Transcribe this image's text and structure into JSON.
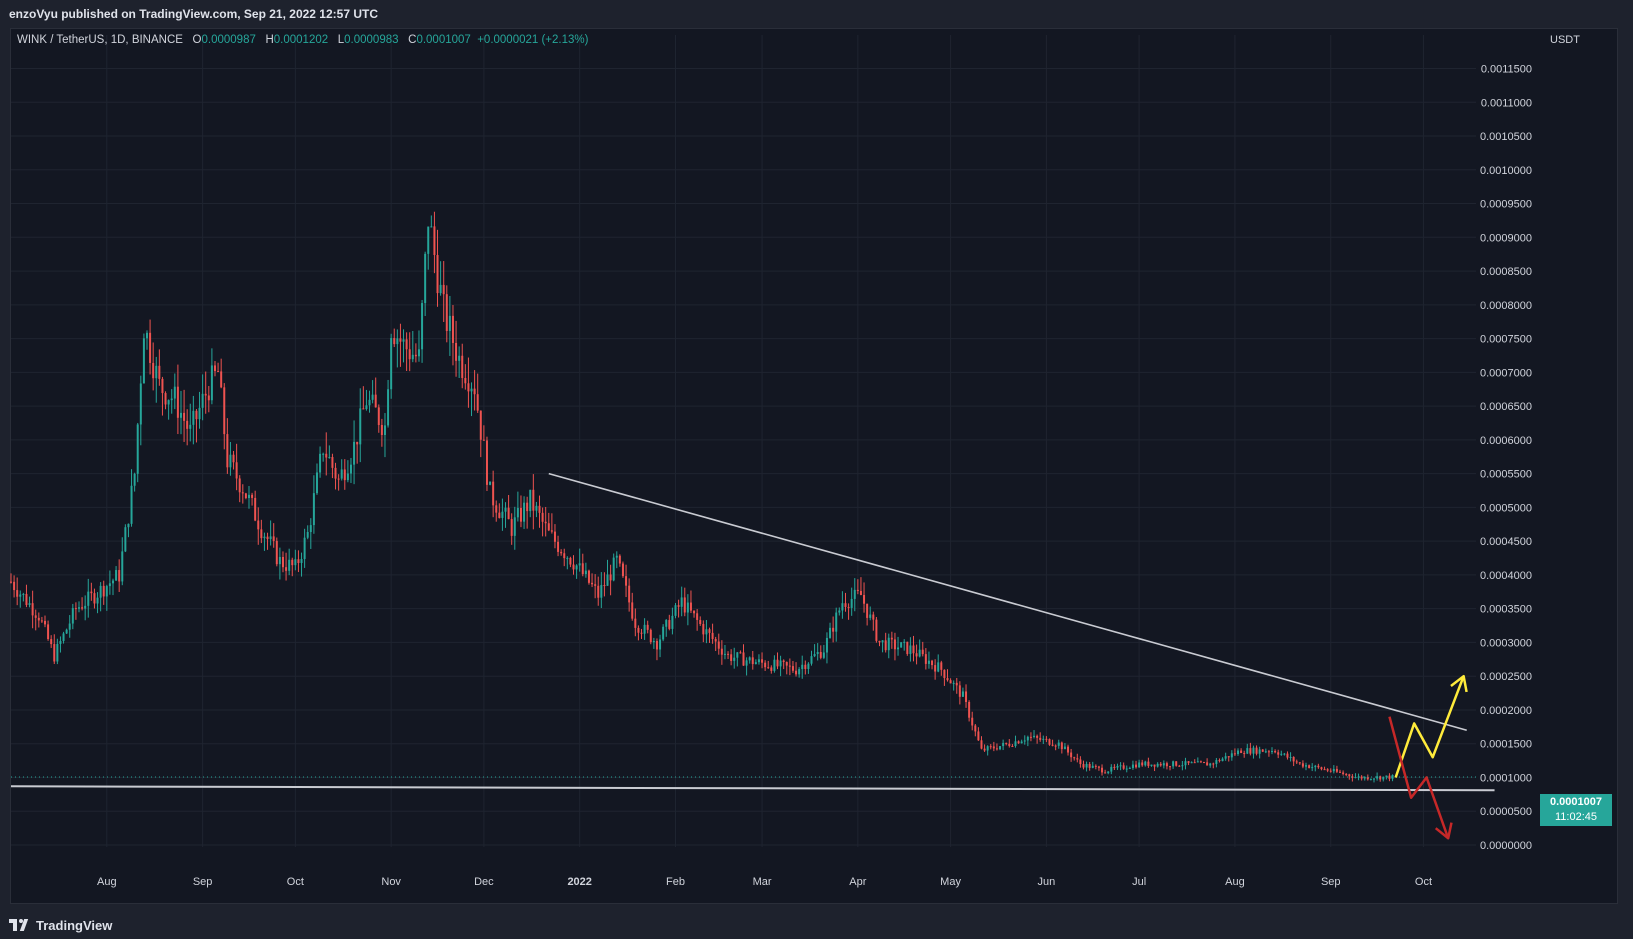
{
  "header": {
    "published": "enzoVyu published on TradingView.com, Sep 21, 2022 12:57 UTC"
  },
  "legend": {
    "symbol": "WINK / TetherUS, 1D, BINANCE",
    "o_label": "O",
    "o_value": "0.0000987",
    "h_label": "H",
    "h_value": "0.0001202",
    "l_label": "L",
    "l_value": "0.0000983",
    "c_label": "C",
    "c_value": "0.0001007",
    "change": "+0.0000021 (+2.13%)"
  },
  "price_axis": {
    "unit": "USDT"
  },
  "last_price": {
    "price": "0.0001007",
    "countdown": "11:02:45"
  },
  "footer": {
    "brand": "TradingView"
  },
  "colors": {
    "up": "#26a69a",
    "down": "#ef5350",
    "background": "#131722",
    "grid": "#1f2430",
    "axis_text": "#d1d4dc",
    "trendline": "#c9cbd2",
    "bull_arrow": "#ffeb3b",
    "bear_arrow": "#c62828"
  },
  "chart_data": {
    "type": "candlestick",
    "title": "WINK / TetherUS, 1D, BINANCE",
    "ylabel": "USDT",
    "ylim": [
      0,
      0.00117
    ],
    "y_ticks": [
      "0.0011500",
      "0.0011000",
      "0.0010500",
      "0.0010000",
      "0.0009500",
      "0.0009000",
      "0.0008500",
      "0.0008000",
      "0.0007500",
      "0.0007000",
      "0.0006500",
      "0.0006000",
      "0.0005500",
      "0.0005000",
      "0.0004500",
      "0.0004000",
      "0.0003500",
      "0.0003000",
      "0.0002500",
      "0.0002000",
      "0.0001500",
      "0.0001000",
      "0.0000500",
      "0.0000000"
    ],
    "x_ticks": [
      {
        "date": "2021-08-01",
        "label": "Aug"
      },
      {
        "date": "2021-09-01",
        "label": "Sep"
      },
      {
        "date": "2021-10-01",
        "label": "Oct"
      },
      {
        "date": "2021-11-01",
        "label": "Nov"
      },
      {
        "date": "2021-12-01",
        "label": "Dec"
      },
      {
        "date": "2022-01-01",
        "label": "2022"
      },
      {
        "date": "2022-02-01",
        "label": "Feb"
      },
      {
        "date": "2022-03-01",
        "label": "Mar"
      },
      {
        "date": "2022-04-01",
        "label": "Apr"
      },
      {
        "date": "2022-05-01",
        "label": "May"
      },
      {
        "date": "2022-06-01",
        "label": "Jun"
      },
      {
        "date": "2022-07-01",
        "label": "Jul"
      },
      {
        "date": "2022-08-01",
        "label": "Aug"
      },
      {
        "date": "2022-09-01",
        "label": "Sep"
      },
      {
        "date": "2022-10-01",
        "label": "Oct"
      }
    ],
    "x_range": [
      "2021-07-01",
      "2022-10-18"
    ],
    "price_path": [
      [
        "2021-07-01",
        0.00039
      ],
      [
        "2021-07-10",
        0.00034
      ],
      [
        "2021-07-15",
        0.00028
      ],
      [
        "2021-07-22",
        0.00035
      ],
      [
        "2021-07-28",
        0.00037
      ],
      [
        "2021-08-05",
        0.0004
      ],
      [
        "2021-08-10",
        0.00055
      ],
      [
        "2021-08-13",
        0.00077
      ],
      [
        "2021-08-18",
        0.00068
      ],
      [
        "2021-08-23",
        0.00066
      ],
      [
        "2021-08-28",
        0.00061
      ],
      [
        "2021-09-03",
        0.00068
      ],
      [
        "2021-09-06",
        0.0007
      ],
      [
        "2021-09-09",
        0.00057
      ],
      [
        "2021-09-14",
        0.00053
      ],
      [
        "2021-09-20",
        0.00047
      ],
      [
        "2021-09-26",
        0.00042
      ],
      [
        "2021-10-01",
        0.00041
      ],
      [
        "2021-10-05",
        0.00046
      ],
      [
        "2021-10-10",
        0.00059
      ],
      [
        "2021-10-15",
        0.00054
      ],
      [
        "2021-10-20",
        0.00059
      ],
      [
        "2021-10-24",
        0.00066
      ],
      [
        "2021-10-30",
        0.00062
      ],
      [
        "2021-11-01",
        0.00077
      ],
      [
        "2021-11-05",
        0.00074
      ],
      [
        "2021-11-10",
        0.00072
      ],
      [
        "2021-11-13",
        0.00093
      ],
      [
        "2021-11-18",
        0.00079
      ],
      [
        "2021-11-23",
        0.00072
      ],
      [
        "2021-11-28",
        0.00068
      ],
      [
        "2021-12-03",
        0.00052
      ],
      [
        "2021-12-10",
        0.00047
      ],
      [
        "2021-12-16",
        0.00051
      ],
      [
        "2021-12-22",
        0.00046
      ],
      [
        "2021-12-30",
        0.00042
      ],
      [
        "2022-01-07",
        0.00037
      ],
      [
        "2022-01-13",
        0.00042
      ],
      [
        "2022-01-19",
        0.00033
      ],
      [
        "2022-01-26",
        0.0003
      ],
      [
        "2022-02-03",
        0.00036
      ],
      [
        "2022-02-10",
        0.00032
      ],
      [
        "2022-02-18",
        0.00028
      ],
      [
        "2022-02-28",
        0.00027
      ],
      [
        "2022-03-12",
        0.00026
      ],
      [
        "2022-03-21",
        0.00029
      ],
      [
        "2022-03-27",
        0.00036
      ],
      [
        "2022-04-02",
        0.00037
      ],
      [
        "2022-04-08",
        0.0003
      ],
      [
        "2022-04-18",
        0.00029
      ],
      [
        "2022-04-28",
        0.00026
      ],
      [
        "2022-05-05",
        0.00022
      ],
      [
        "2022-05-11",
        0.00014
      ],
      [
        "2022-05-20",
        0.00015
      ],
      [
        "2022-05-26",
        0.00016
      ],
      [
        "2022-06-05",
        0.00015
      ],
      [
        "2022-06-12",
        0.00012
      ],
      [
        "2022-06-20",
        0.00011
      ],
      [
        "2022-07-01",
        0.00012
      ],
      [
        "2022-07-12",
        0.00012
      ],
      [
        "2022-07-24",
        0.00012
      ],
      [
        "2022-08-03",
        0.00014
      ],
      [
        "2022-08-14",
        0.00014
      ],
      [
        "2022-08-22",
        0.00012
      ],
      [
        "2022-09-01",
        0.00011
      ],
      [
        "2022-09-10",
        0.0001
      ],
      [
        "2022-09-21",
        0.0001007
      ]
    ],
    "annotations": [
      {
        "name": "descending-trendline",
        "type": "line",
        "points": [
          [
            "2021-12-22",
            0.00055
          ],
          [
            "2022-10-15",
            0.00017
          ]
        ]
      },
      {
        "name": "support-line",
        "type": "line",
        "points": [
          [
            "2021-07-01",
            8.7e-05
          ],
          [
            "2022-10-24",
            8.1e-05
          ]
        ]
      },
      {
        "name": "bullish-projection",
        "type": "polyline",
        "points": [
          [
            "2022-09-22",
            0.0001
          ],
          [
            "2022-09-28",
            0.00018
          ],
          [
            "2022-10-04",
            0.00013
          ],
          [
            "2022-10-14",
            0.00025
          ]
        ]
      },
      {
        "name": "bearish-projection",
        "type": "polyline",
        "points": [
          [
            "2022-09-20",
            0.00019
          ],
          [
            "2022-09-27",
            7e-05
          ],
          [
            "2022-10-02",
            0.0001
          ],
          [
            "2022-10-09",
            1e-05
          ]
        ]
      }
    ]
  }
}
